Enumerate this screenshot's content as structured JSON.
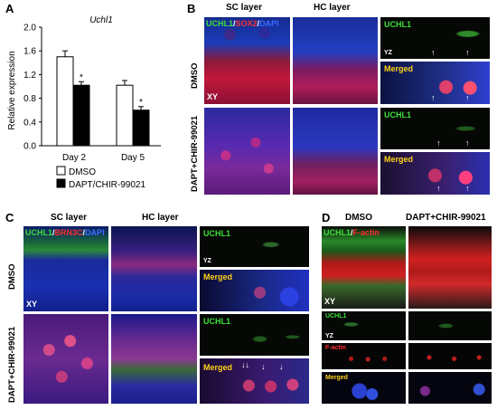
{
  "panels": {
    "A": {
      "label": "A",
      "chart_data": {
        "type": "bar",
        "title": "Uchl1",
        "ylabel": "Relative expression",
        "categories": [
          "Day 2",
          "Day 5"
        ],
        "series": [
          {
            "name": "DMSO",
            "values": [
              1.5,
              1.02
            ],
            "errors": [
              0.1,
              0.08
            ],
            "color": "#ffffff"
          },
          {
            "name": "DAPT/CHIR-99021",
            "values": [
              1.02,
              0.6
            ],
            "errors": [
              0.06,
              0.06
            ],
            "color": "#000000"
          }
        ],
        "ylim": [
          0,
          2.0
        ],
        "yticks": [
          "0.0",
          "0.4",
          "0.8",
          "1.2",
          "1.6",
          "2.0"
        ],
        "significance": [
          "*",
          "*"
        ]
      }
    },
    "B": {
      "label": "B",
      "col1": "SC layer",
      "col2": "HC layer",
      "stain": {
        "p1": "UCHL1",
        "s1": "/",
        "p2": "SOX2",
        "s2": "/",
        "p3": "DAPI"
      },
      "row1": "DMSO",
      "row2": "DAPT+CHIR-99021",
      "xy": "XY",
      "yz": "YZ",
      "uchl1": "UCHL1",
      "merged": "Merged"
    },
    "C": {
      "label": "C",
      "col1": "SC layer",
      "col2": "HC layer",
      "stain": {
        "p1": "UCHL1",
        "s1": "/",
        "p2": "BRN3C",
        "s2": "/",
        "p3": "DAPI"
      },
      "row1": "DMSO",
      "row2": "DAPT+CHIR-99021",
      "xy": "XY",
      "yz": "YZ",
      "uchl1": "UCHL1",
      "merged": "Merged"
    },
    "D": {
      "label": "D",
      "col1": "DMSO",
      "col2": "DAPT+CHIR-99021",
      "stain": {
        "p1": "UCHL1",
        "s1": "/",
        "p2": "F-actin"
      },
      "xy": "XY",
      "yz": "YZ",
      "uchl1": "UCHL1",
      "factin": "F-actin",
      "merged": "Merged"
    }
  }
}
